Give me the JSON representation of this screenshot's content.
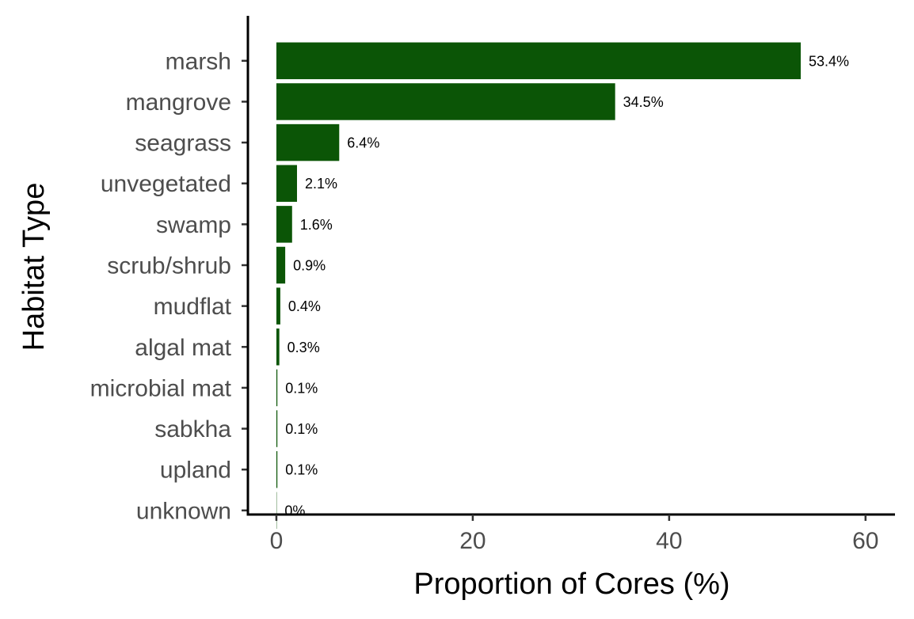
{
  "chart_data": {
    "type": "bar",
    "orientation": "horizontal",
    "categories": [
      "marsh",
      "mangrove",
      "seagrass",
      "unvegetated",
      "swamp",
      "scrub/shrub",
      "mudflat",
      "algal mat",
      "microbial mat",
      "sabkha",
      "upland",
      "unknown"
    ],
    "values": [
      53.4,
      34.5,
      6.4,
      2.1,
      1.6,
      0.9,
      0.4,
      0.3,
      0.1,
      0.1,
      0.1,
      0.02
    ],
    "data_labels": [
      "53.4%",
      "34.5%",
      "6.4%",
      "2.1%",
      "1.6%",
      "0.9%",
      "0.4%",
      "0.3%",
      "0.1%",
      "0.1%",
      "0.1%",
      "0%"
    ],
    "xlabel": "Proportion of Cores (%)",
    "ylabel": "Habitat Type",
    "xlim": [
      -2.9,
      63.0
    ],
    "xticks": [
      0,
      20,
      40,
      60
    ],
    "xtick_labels": [
      "0",
      "20",
      "40",
      "60"
    ],
    "bar_color": "#0b5506",
    "grid": false,
    "legend": false
  }
}
